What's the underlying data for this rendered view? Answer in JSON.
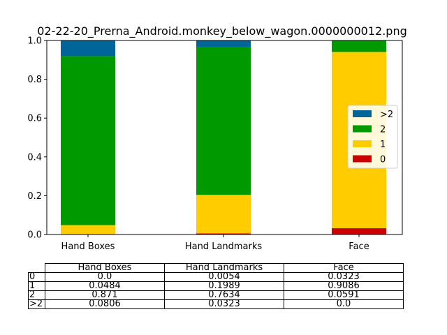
{
  "chart_data": {
    "type": "bar",
    "stacked": true,
    "title": "02-22-20_Prerna_Android.monkey_below_wagon.0000000012.png",
    "categories": [
      "Hand Boxes",
      "Hand Landmarks",
      "Face"
    ],
    "series": [
      {
        "name": "0",
        "color": "#cc0000",
        "values": [
          0.0,
          0.0054,
          0.0323
        ]
      },
      {
        "name": "1",
        "color": "#ffcc00",
        "values": [
          0.0484,
          0.1989,
          0.9086
        ]
      },
      {
        "name": "2",
        "color": "#009900",
        "values": [
          0.871,
          0.7634,
          0.0591
        ]
      },
      {
        "name": ">2",
        "color": "#006699",
        "values": [
          0.0806,
          0.0323,
          0.0
        ]
      }
    ],
    "ylim": [
      0,
      1
    ],
    "yticks": [
      "0.0",
      "0.2",
      "0.4",
      "0.6",
      "0.8",
      "1.0"
    ],
    "grid": false,
    "legend": {
      "position": "right",
      "entries": [
        ">2",
        "2",
        "1",
        "0"
      ]
    }
  },
  "table": {
    "columns": [
      "Hand Boxes",
      "Hand Landmarks",
      "Face"
    ],
    "rows": [
      {
        "label": "0",
        "cells": [
          "0.0",
          "0.0054",
          "0.0323"
        ]
      },
      {
        "label": "1",
        "cells": [
          "0.0484",
          "0.1989",
          "0.9086"
        ]
      },
      {
        "label": "2",
        "cells": [
          "0.871",
          "0.7634",
          "0.0591"
        ]
      },
      {
        "label": ">2",
        "cells": [
          "0.0806",
          "0.0323",
          "0.0"
        ]
      }
    ]
  }
}
